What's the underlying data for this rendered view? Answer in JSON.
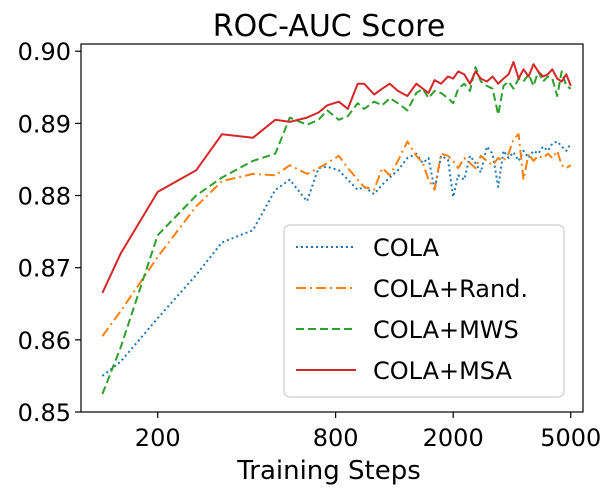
{
  "chart_data": {
    "type": "line",
    "title": "ROC-AUC Score",
    "xlabel": "Training Steps",
    "ylabel": "",
    "x_scale": "log",
    "xlim": [
      110,
      5500
    ],
    "ylim": [
      0.85,
      0.901
    ],
    "x_ticks": [
      200,
      800,
      2000,
      5000
    ],
    "x_tick_labels": [
      "200",
      "800",
      "2000",
      "5000"
    ],
    "y_ticks": [
      0.85,
      0.86,
      0.87,
      0.88,
      0.89,
      0.9
    ],
    "y_tick_labels": [
      "0.85",
      "0.86",
      "0.87",
      "0.88",
      "0.89",
      "0.90"
    ],
    "legend_position": "lower-right",
    "series": [
      {
        "name": "COLA",
        "color": "#1f77b4",
        "style": "dotted",
        "x": [
          130,
          150,
          200,
          270,
          330,
          420,
          500,
          560,
          640,
          700,
          750,
          820,
          880,
          950,
          1000,
          1080,
          1150,
          1220,
          1300,
          1400,
          1500,
          1580,
          1650,
          1730,
          1820,
          1920,
          2000,
          2080,
          2180,
          2280,
          2380,
          2480,
          2600,
          2720,
          2840,
          2960,
          3080,
          3200,
          3330,
          3460,
          3600,
          3740,
          3880,
          4030,
          4180,
          4330,
          4500,
          4660,
          4830,
          5000
        ],
        "y": [
          0.855,
          0.857,
          0.863,
          0.869,
          0.8735,
          0.8752,
          0.8808,
          0.8822,
          0.8792,
          0.8838,
          0.884,
          0.8835,
          0.8822,
          0.8808,
          0.8812,
          0.8802,
          0.8815,
          0.8825,
          0.8835,
          0.8852,
          0.8858,
          0.8845,
          0.8852,
          0.8808,
          0.8855,
          0.885,
          0.8798,
          0.8828,
          0.8822,
          0.8855,
          0.8845,
          0.8832,
          0.8868,
          0.8858,
          0.8812,
          0.8862,
          0.8852,
          0.886,
          0.8848,
          0.8862,
          0.8852,
          0.8862,
          0.8858,
          0.8868,
          0.8862,
          0.8872,
          0.8875,
          0.8868,
          0.8862,
          0.8872
        ]
      },
      {
        "name": "COLA+Rand.",
        "color": "#ff7f0e",
        "style": "dashdot",
        "x": [
          130,
          150,
          200,
          270,
          330,
          420,
          500,
          560,
          640,
          700,
          750,
          820,
          880,
          950,
          1000,
          1080,
          1150,
          1220,
          1300,
          1400,
          1500,
          1580,
          1650,
          1730,
          1820,
          1920,
          2000,
          2080,
          2180,
          2280,
          2380,
          2480,
          2600,
          2720,
          2840,
          2960,
          3080,
          3200,
          3330,
          3460,
          3600,
          3740,
          3880,
          4030,
          4180,
          4330,
          4500,
          4660,
          4830,
          5000
        ],
        "y": [
          0.8605,
          0.864,
          0.8715,
          0.8785,
          0.882,
          0.883,
          0.8828,
          0.8842,
          0.883,
          0.8838,
          0.8845,
          0.8855,
          0.8838,
          0.8822,
          0.8812,
          0.8808,
          0.8838,
          0.8828,
          0.8848,
          0.8875,
          0.8855,
          0.8845,
          0.8822,
          0.8808,
          0.8858,
          0.8855,
          0.8848,
          0.8838,
          0.8852,
          0.8845,
          0.8838,
          0.8855,
          0.8848,
          0.8842,
          0.8852,
          0.8848,
          0.8858,
          0.8878,
          0.8885,
          0.8822,
          0.8858,
          0.8848,
          0.8855,
          0.8852,
          0.8858,
          0.8852,
          0.8862,
          0.8842,
          0.8838,
          0.8842
        ]
      },
      {
        "name": "COLA+MWS",
        "color": "#2ca02c",
        "style": "dashed",
        "x": [
          130,
          150,
          200,
          270,
          330,
          420,
          500,
          560,
          640,
          700,
          750,
          820,
          880,
          950,
          1000,
          1080,
          1150,
          1220,
          1300,
          1400,
          1500,
          1580,
          1650,
          1730,
          1820,
          1920,
          2000,
          2080,
          2180,
          2280,
          2380,
          2480,
          2600,
          2720,
          2840,
          2960,
          3080,
          3200,
          3330,
          3460,
          3600,
          3740,
          3880,
          4030,
          4180,
          4330,
          4500,
          4660,
          4830,
          5000
        ],
        "y": [
          0.8525,
          0.859,
          0.8745,
          0.88,
          0.8825,
          0.8848,
          0.8858,
          0.8908,
          0.8898,
          0.8905,
          0.8918,
          0.8905,
          0.891,
          0.8928,
          0.892,
          0.893,
          0.8925,
          0.8935,
          0.8928,
          0.8918,
          0.8942,
          0.8948,
          0.8935,
          0.8945,
          0.8942,
          0.8935,
          0.8928,
          0.8948,
          0.8955,
          0.8945,
          0.8978,
          0.8958,
          0.8952,
          0.8948,
          0.8912,
          0.8952,
          0.8958,
          0.8948,
          0.8962,
          0.8958,
          0.8968,
          0.8952,
          0.8972,
          0.8958,
          0.8965,
          0.8962,
          0.8938,
          0.8972,
          0.8952,
          0.8948
        ]
      },
      {
        "name": "COLA+MSA",
        "color": "#d62728",
        "style": "solid",
        "x": [
          130,
          150,
          200,
          270,
          330,
          420,
          500,
          560,
          640,
          700,
          750,
          820,
          880,
          950,
          1000,
          1080,
          1150,
          1220,
          1300,
          1400,
          1500,
          1580,
          1650,
          1730,
          1820,
          1920,
          2000,
          2080,
          2180,
          2280,
          2380,
          2480,
          2600,
          2720,
          2840,
          2960,
          3080,
          3200,
          3330,
          3460,
          3600,
          3740,
          3880,
          4030,
          4180,
          4330,
          4500,
          4660,
          4830,
          5000
        ],
        "y": [
          0.8665,
          0.872,
          0.8805,
          0.8835,
          0.8885,
          0.888,
          0.8905,
          0.8902,
          0.8908,
          0.8915,
          0.8925,
          0.893,
          0.892,
          0.8955,
          0.8955,
          0.894,
          0.8948,
          0.8955,
          0.8945,
          0.8938,
          0.8955,
          0.8948,
          0.8942,
          0.896,
          0.8955,
          0.8965,
          0.8962,
          0.8972,
          0.8968,
          0.8955,
          0.8972,
          0.8962,
          0.8958,
          0.8965,
          0.8955,
          0.8962,
          0.8968,
          0.8985,
          0.8962,
          0.8975,
          0.8965,
          0.8982,
          0.8972,
          0.8965,
          0.8968,
          0.8975,
          0.8962,
          0.8958,
          0.8968,
          0.8952
        ]
      }
    ]
  }
}
